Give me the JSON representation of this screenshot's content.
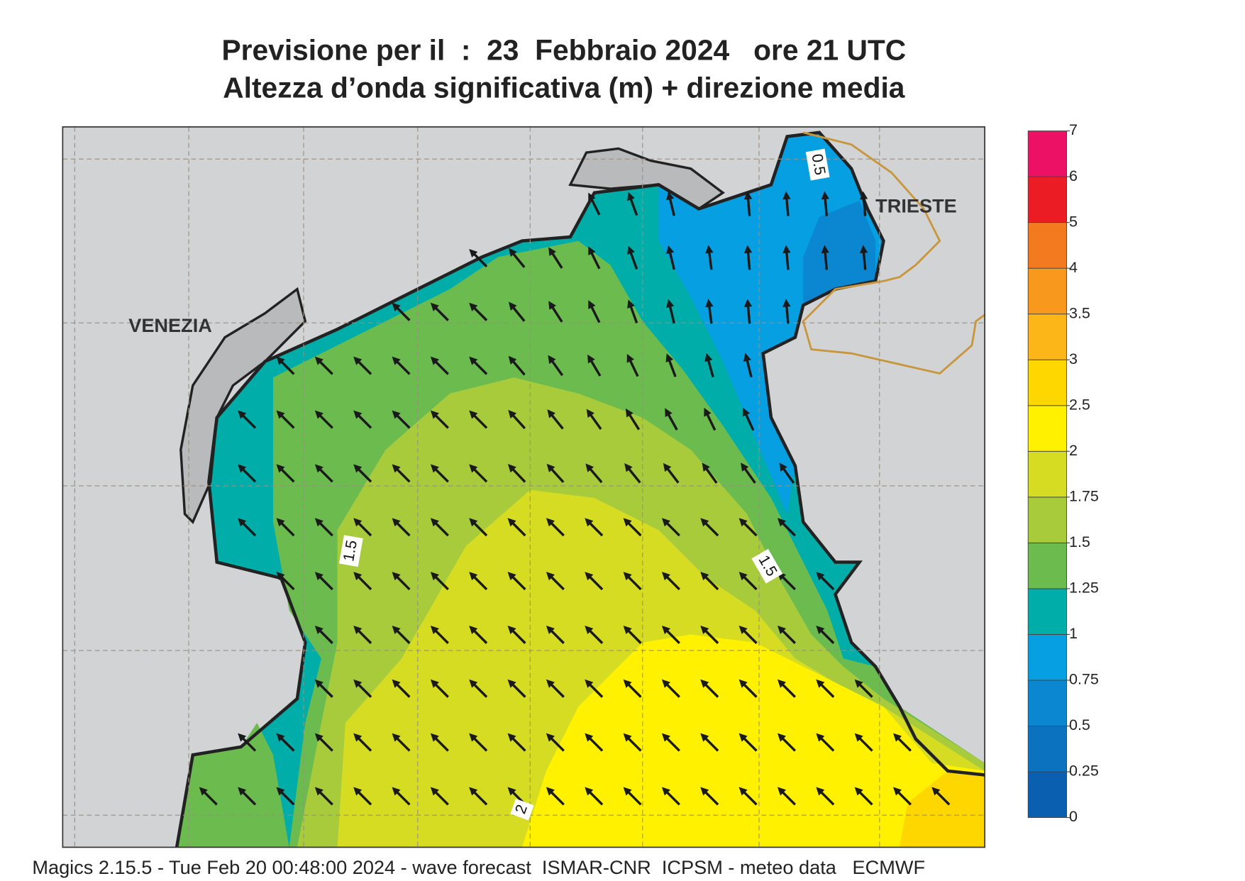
{
  "header": {
    "title": "Previsione per il  :  23  Febbraio 2024   ore 21 UTC",
    "subtitle": "Altezza d’onda significativa (m) + direzione media"
  },
  "map": {
    "places": [
      "VENEZIA",
      "TRIESTE"
    ],
    "contour_labels": [
      1.5,
      1.5,
      2,
      0.5
    ]
  },
  "colorbar": {
    "ticks": [
      0,
      0.25,
      0.5,
      0.75,
      1,
      1.25,
      1.5,
      1.75,
      2,
      2.5,
      3,
      3.5,
      4,
      5,
      6,
      7
    ],
    "colors": [
      "#0a5fb0",
      "#0b72c0",
      "#0a87d0",
      "#069fe2",
      "#00ada8",
      "#6cbb4f",
      "#a8cb3c",
      "#d6dc22",
      "#fff100",
      "#fed600",
      "#fcb618",
      "#f8991d",
      "#f47a20",
      "#ec1c24",
      "#ec1164"
    ]
  },
  "footer": "Magics 2.15.5 - Tue Feb 20 00:48:00 2024 - wave forecast  ISMAR-CNR  ICPSM - meteo data   ECMWF"
}
